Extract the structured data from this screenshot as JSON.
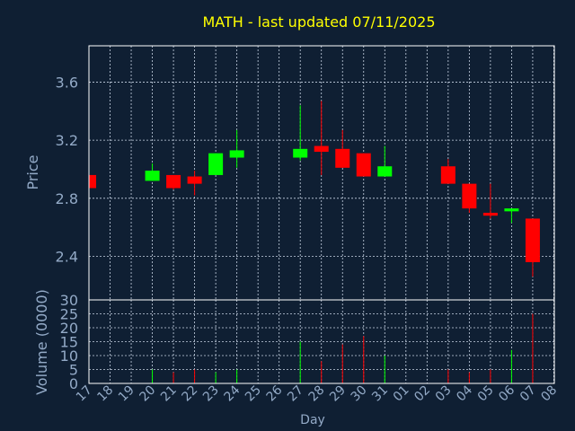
{
  "chart_data": {
    "type": "candlestick",
    "title": "MATH - last updated 07/11/2025",
    "xlabel": "Day",
    "ylabel": "Price",
    "volume_label": "Volume (0000)",
    "colors": {
      "background": "#0f1f33",
      "title": "#ffff00",
      "axis_text": "#93aac7",
      "up": "#00ff00",
      "down": "#ff0000",
      "grid": "#c8d4e4"
    },
    "price_ylim": [
      2.1,
      3.85
    ],
    "price_yticks": [
      "2.4",
      "2.8",
      "3.2",
      "3.6"
    ],
    "volume_ylim": [
      0,
      30
    ],
    "volume_yticks": [
      "0",
      "5",
      "10",
      "15",
      "20",
      "25",
      "30"
    ],
    "grid": true,
    "day_labels": [
      "17",
      "18",
      "19",
      "20",
      "21",
      "22",
      "23",
      "24",
      "25",
      "26",
      "27",
      "28",
      "29",
      "30",
      "31",
      "01",
      "02",
      "03",
      "04",
      "05",
      "06",
      "07",
      "08"
    ],
    "candles": [
      {
        "day": "17",
        "open": 2.96,
        "close": 2.87,
        "high": 2.96,
        "low": 2.87,
        "volume": 0
      },
      {
        "day": "20",
        "open": 2.92,
        "close": 2.99,
        "high": 3.04,
        "low": 2.92,
        "volume": 5
      },
      {
        "day": "21",
        "open": 2.96,
        "close": 2.87,
        "high": 2.96,
        "low": 2.86,
        "volume": 4
      },
      {
        "day": "22",
        "open": 2.95,
        "close": 2.9,
        "high": 2.99,
        "low": 2.82,
        "volume": 5
      },
      {
        "day": "23",
        "open": 2.96,
        "close": 3.11,
        "high": 3.11,
        "low": 2.96,
        "volume": 4
      },
      {
        "day": "24",
        "open": 3.08,
        "close": 3.13,
        "high": 3.27,
        "low": 3.01,
        "volume": 5
      },
      {
        "day": "27",
        "open": 3.08,
        "close": 3.14,
        "high": 3.44,
        "low": 3.06,
        "volume": 15
      },
      {
        "day": "28",
        "open": 3.16,
        "close": 3.12,
        "high": 3.47,
        "low": 2.96,
        "volume": 8
      },
      {
        "day": "29",
        "open": 3.14,
        "close": 3.01,
        "high": 3.27,
        "low": 3.01,
        "volume": 14
      },
      {
        "day": "30",
        "open": 3.11,
        "close": 2.95,
        "high": 3.11,
        "low": 2.95,
        "volume": 17
      },
      {
        "day": "31",
        "open": 2.95,
        "close": 3.02,
        "high": 3.16,
        "low": 2.95,
        "volume": 10
      },
      {
        "day": "03",
        "open": 3.02,
        "close": 2.9,
        "high": 3.07,
        "low": 2.9,
        "volume": 5
      },
      {
        "day": "04",
        "open": 2.9,
        "close": 2.73,
        "high": 2.9,
        "low": 2.7,
        "volume": 4
      },
      {
        "day": "05",
        "open": 2.7,
        "close": 2.68,
        "high": 2.9,
        "low": 2.66,
        "volume": 5
      },
      {
        "day": "06",
        "open": 2.71,
        "close": 2.73,
        "high": 2.73,
        "low": 2.63,
        "volume": 12
      },
      {
        "day": "07",
        "open": 2.66,
        "close": 2.36,
        "high": 2.66,
        "low": 2.26,
        "volume": 25
      }
    ]
  }
}
